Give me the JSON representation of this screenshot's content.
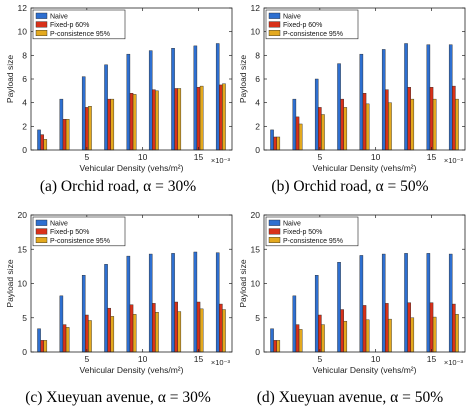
{
  "colors": {
    "naive": "#2e6fd0",
    "fixed": "#d8311a",
    "pcons": "#e4a91e"
  },
  "chart_data": [
    {
      "type": "bar",
      "caption": "(a) Orchid road, α = 30%",
      "xlabel": "Vehicular Density (vehs/m²)",
      "x_exponent": "×10⁻³",
      "ylabel": "Payload size",
      "ylim": [
        0,
        12
      ],
      "yticks": [
        0,
        2,
        4,
        6,
        8,
        10,
        12
      ],
      "xticks": [
        5,
        10,
        15
      ],
      "legend_position": "top-left",
      "categories": [
        1,
        3,
        5,
        7,
        9,
        11,
        13,
        15,
        17
      ],
      "series": [
        {
          "name": "Naive",
          "values": [
            1.7,
            4.3,
            6.2,
            7.2,
            8.1,
            8.4,
            8.6,
            8.8,
            9.0
          ]
        },
        {
          "name": "Fixed-p 60%",
          "values": [
            1.3,
            2.6,
            3.6,
            4.3,
            4.8,
            5.1,
            5.2,
            5.3,
            5.5
          ]
        },
        {
          "name": "P-consistence 95%",
          "values": [
            0.9,
            2.6,
            3.7,
            4.3,
            4.7,
            5.0,
            5.2,
            5.4,
            5.6
          ]
        }
      ]
    },
    {
      "type": "bar",
      "caption": "(b) Orchid road, α = 50%",
      "xlabel": "Vehicular Density (vehs/m²)",
      "x_exponent": "×10⁻³",
      "ylabel": "Payload size",
      "ylim": [
        0,
        12
      ],
      "yticks": [
        0,
        2,
        4,
        6,
        8,
        10,
        12
      ],
      "xticks": [
        5,
        10,
        15
      ],
      "legend_position": "top-left",
      "categories": [
        1,
        3,
        5,
        7,
        9,
        11,
        13,
        15,
        17
      ],
      "series": [
        {
          "name": "Naive",
          "values": [
            1.7,
            4.3,
            6.0,
            7.3,
            8.1,
            8.5,
            9.0,
            8.9,
            8.9
          ]
        },
        {
          "name": "Fixed-p 60%",
          "values": [
            1.1,
            2.8,
            3.6,
            4.3,
            4.8,
            5.1,
            5.3,
            5.3,
            5.4
          ]
        },
        {
          "name": "P-consistence 95%",
          "values": [
            1.1,
            2.2,
            3.0,
            3.6,
            3.9,
            4.0,
            4.3,
            4.3,
            4.3
          ]
        }
      ]
    },
    {
      "type": "bar",
      "caption": "(c) Xueyuan avenue, α = 30%",
      "xlabel": "Vehicular Density (vehs/m²)",
      "x_exponent": "×10⁻³",
      "ylabel": "Payload size",
      "ylim": [
        0,
        20
      ],
      "yticks": [
        0,
        5,
        10,
        15,
        20
      ],
      "xticks": [
        5,
        10,
        15
      ],
      "legend_position": "top-left",
      "categories": [
        1,
        3,
        5,
        7,
        9,
        11,
        13,
        15,
        17
      ],
      "series": [
        {
          "name": "Naive",
          "values": [
            3.4,
            8.2,
            11.2,
            12.8,
            14.0,
            14.3,
            14.4,
            14.6,
            14.5
          ]
        },
        {
          "name": "Fixed-p 50%",
          "values": [
            1.7,
            4.0,
            5.4,
            6.4,
            6.9,
            7.1,
            7.3,
            7.3,
            7.0
          ]
        },
        {
          "name": "P-consistence 95%",
          "values": [
            1.7,
            3.6,
            4.6,
            5.2,
            5.5,
            5.8,
            5.9,
            6.3,
            6.2
          ]
        }
      ]
    },
    {
      "type": "bar",
      "caption": "(d) Xueyuan avenue, α = 50%",
      "xlabel": "Vehicular Density (vehs/m²)",
      "x_exponent": "×10⁻³",
      "ylabel": "Payload size",
      "ylim": [
        0,
        20
      ],
      "yticks": [
        0,
        5,
        10,
        15,
        20
      ],
      "xticks": [
        5,
        10,
        15
      ],
      "legend_position": "top-left",
      "categories": [
        1,
        3,
        5,
        7,
        9,
        11,
        13,
        15,
        17
      ],
      "series": [
        {
          "name": "Naive",
          "values": [
            3.4,
            8.2,
            11.2,
            13.1,
            14.1,
            14.3,
            14.4,
            14.4,
            14.3
          ]
        },
        {
          "name": "Fixed-p 50%",
          "values": [
            1.7,
            4.0,
            5.4,
            6.2,
            6.8,
            7.1,
            7.2,
            7.2,
            7.0
          ]
        },
        {
          "name": "P-consistence 95%",
          "values": [
            1.7,
            3.3,
            4.0,
            4.5,
            4.7,
            4.8,
            5.0,
            5.1,
            5.5
          ]
        }
      ]
    }
  ]
}
